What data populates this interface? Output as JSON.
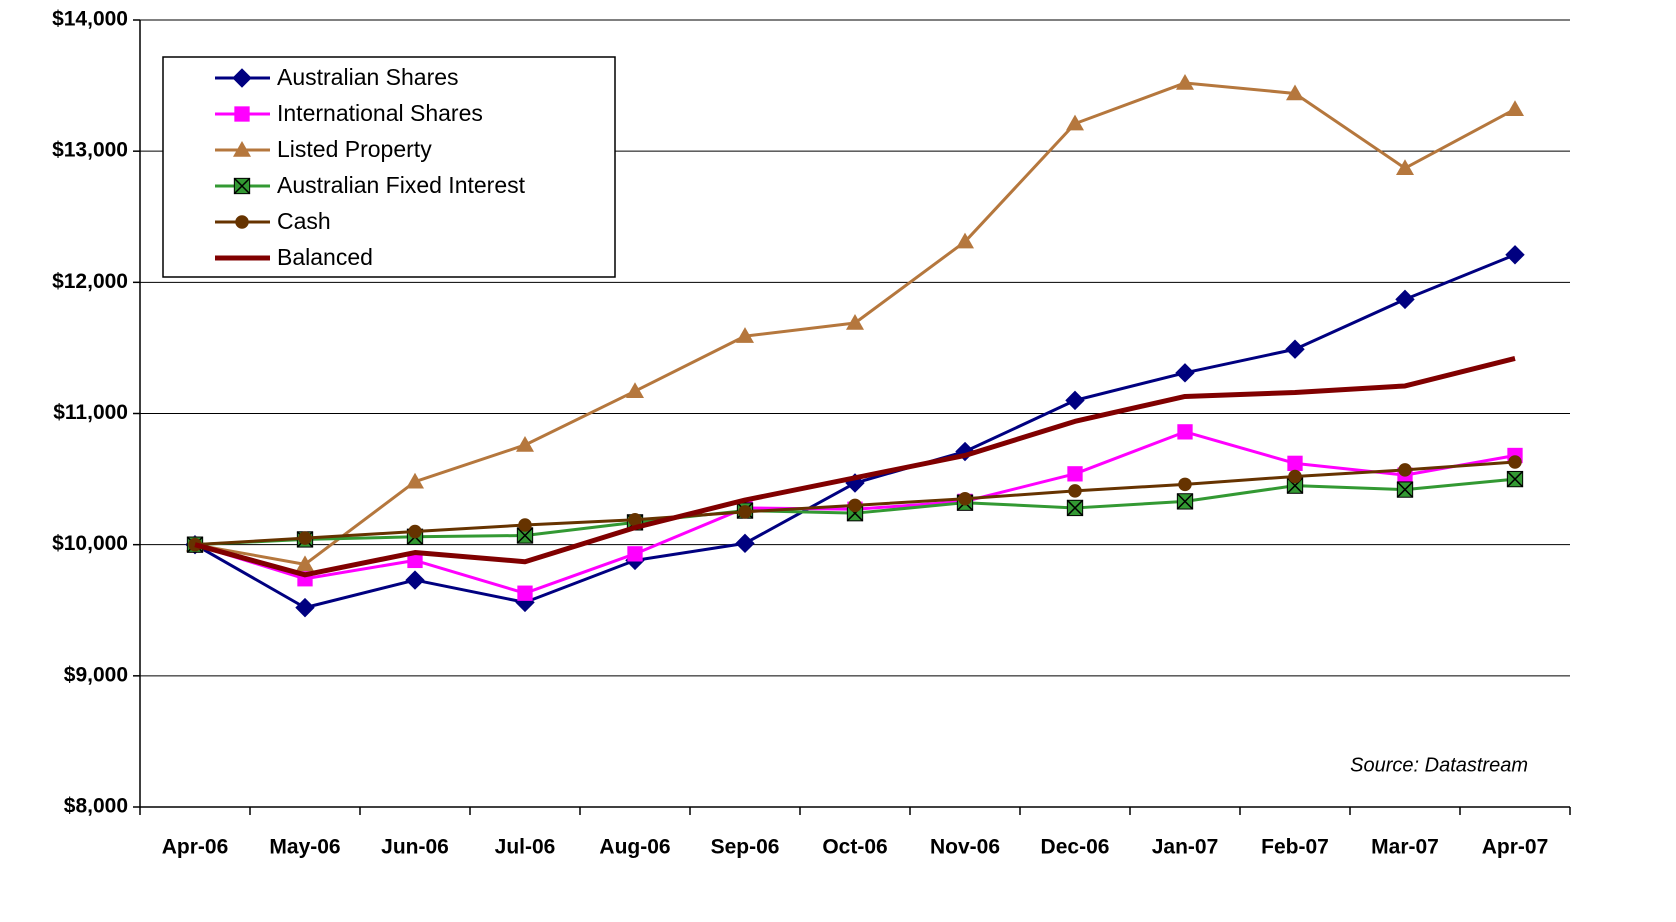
{
  "chart_data": {
    "type": "line",
    "categories": [
      "Apr-06",
      "May-06",
      "Jun-06",
      "Jul-06",
      "Aug-06",
      "Sep-06",
      "Oct-06",
      "Nov-06",
      "Dec-06",
      "Jan-07",
      "Feb-07",
      "Mar-07",
      "Apr-07"
    ],
    "series": [
      {
        "name": "Australian Shares",
        "color": "#000080",
        "marker": "diamond",
        "values": [
          10000,
          9520,
          9730,
          9560,
          9880,
          10010,
          10470,
          10710,
          11100,
          11310,
          11490,
          11870,
          12210
        ]
      },
      {
        "name": "International Shares",
        "color": "#ff00ff",
        "marker": "square",
        "values": [
          10000,
          9740,
          9880,
          9630,
          9930,
          10280,
          10270,
          10330,
          10540,
          10860,
          10620,
          10530,
          10680
        ]
      },
      {
        "name": "Listed Property",
        "color": "#b5773d",
        "marker": "triangle",
        "values": [
          10000,
          9850,
          10480,
          10760,
          11170,
          11590,
          11690,
          12310,
          13210,
          13520,
          13440,
          12870,
          13320
        ]
      },
      {
        "name": "Australian Fixed Interest",
        "color": "#339933",
        "marker": "xsquare",
        "values": [
          10000,
          10040,
          10060,
          10070,
          10170,
          10260,
          10240,
          10320,
          10280,
          10330,
          10450,
          10420,
          10500
        ]
      },
      {
        "name": "Cash",
        "color": "#663300",
        "marker": "circle",
        "values": [
          10000,
          10050,
          10100,
          10150,
          10190,
          10250,
          10300,
          10350,
          10410,
          10460,
          10520,
          10570,
          10630
        ]
      },
      {
        "name": "Balanced",
        "color": "#800000",
        "marker": "none",
        "values": [
          10000,
          9770,
          9940,
          9870,
          10130,
          10340,
          10510,
          10680,
          10940,
          11130,
          11160,
          11210,
          11420
        ]
      }
    ],
    "ylim": [
      8000,
      14000
    ],
    "yticks": [
      {
        "value": 8000,
        "label": "$8,000"
      },
      {
        "value": 9000,
        "label": "$9,000"
      },
      {
        "value": 10000,
        "label": "$10,000"
      },
      {
        "value": 11000,
        "label": "$11,000"
      },
      {
        "value": 12000,
        "label": "$12,000"
      },
      {
        "value": 13000,
        "label": "$13,000"
      },
      {
        "value": 14000,
        "label": "$14,000"
      }
    ],
    "grid": true,
    "legend": "upper left",
    "annotation": "Source: Datastream"
  }
}
